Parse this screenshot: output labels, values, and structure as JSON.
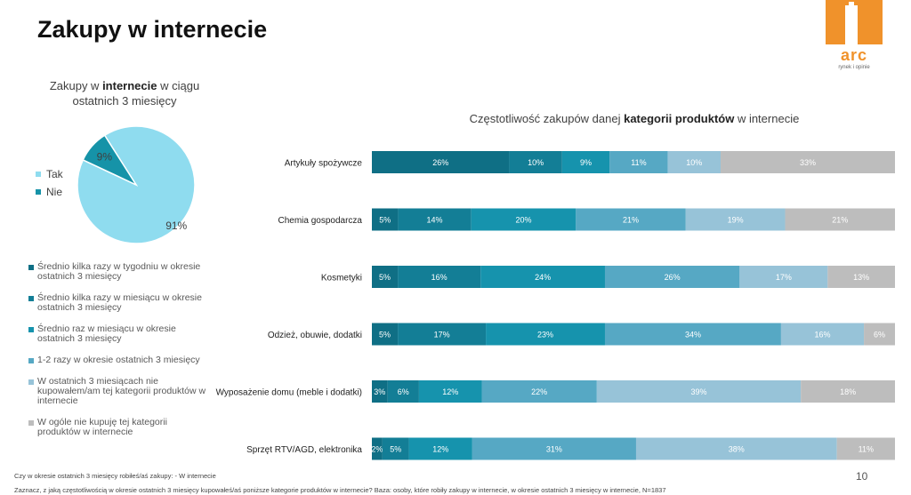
{
  "title": "Zakupy w internecie",
  "logo": {
    "word": "arc",
    "tagline": "rynek i opinie"
  },
  "page_number": "10",
  "pie_title": {
    "before": "Zakupy w ",
    "bold": "internecie",
    "after": " w ciągu ostatnich 3 miesięcy"
  },
  "bar_title": {
    "before": "Częstotliwość zakupów danej ",
    "bold": "kategorii produktów",
    "after": " w internecie"
  },
  "footnotes": [
    "Czy w okresie ostatnich 3 miesięcy robiłeś/aś zakupy: - W internecie",
    "Zaznacz, z jaką częstotliwością w okresie ostatnich 3 miesięcy kupowałeś/aś poniższe kategorie produktów w internecie? Baza: osoby, które robiły zakupy w internecie, w okresie ostatnich 3 miesięcy w internecie, N=1837"
  ],
  "colors": {
    "pie_tak": "#8fdcef",
    "pie_nie": "#1693a8",
    "bar": [
      "#0f6f85",
      "#137e96",
      "#1693ad",
      "#56a8c4",
      "#97c3d8",
      "#bdbdbd"
    ]
  },
  "chart_data": [
    {
      "type": "pie",
      "title": "Zakupy w internecie w ciągu ostatnich 3 miesięcy",
      "labels": [
        "Tak",
        "Nie"
      ],
      "values": [
        91,
        9
      ],
      "value_labels": [
        "91%",
        "9%"
      ],
      "legend": "left"
    },
    {
      "type": "bar",
      "orientation": "horizontal",
      "stacked": true,
      "title": "Częstotliwość zakupów danej kategorii produktów w internecie",
      "categories": [
        "Artykuły spożywcze",
        "Chemia gospodarcza",
        "Kosmetyki",
        "Odzież, obuwie, dodatki",
        "Wyposażenie domu (meble i dodatki)",
        "Sprzęt RTV/AGD, elektronika"
      ],
      "series": [
        {
          "name": "Średnio kilka razy w tygodniu w okresie ostatnich 3 miesięcy",
          "values": [
            26,
            5,
            5,
            5,
            3,
            2
          ]
        },
        {
          "name": "Średnio kilka razy w miesiącu w okresie ostatnich 3 miesięcy",
          "values": [
            10,
            14,
            16,
            17,
            6,
            5
          ]
        },
        {
          "name": "Średnio raz w miesiącu w okresie ostatnich 3 miesięcy",
          "values": [
            9,
            20,
            24,
            23,
            12,
            12
          ]
        },
        {
          "name": "1-2 razy w okresie ostatnich 3 miesięcy",
          "values": [
            11,
            21,
            26,
            34,
            22,
            31
          ]
        },
        {
          "name": "W ostatnich 3 miesiącach nie kupowałem/am tej kategorii produktów w internecie",
          "values": [
            10,
            19,
            17,
            16,
            39,
            38
          ]
        },
        {
          "name": "W ogóle nie kupuję tej kategorii produktów w internecie",
          "values": [
            33,
            21,
            13,
            6,
            18,
            11
          ]
        }
      ],
      "legend": "left",
      "grid": false
    }
  ]
}
